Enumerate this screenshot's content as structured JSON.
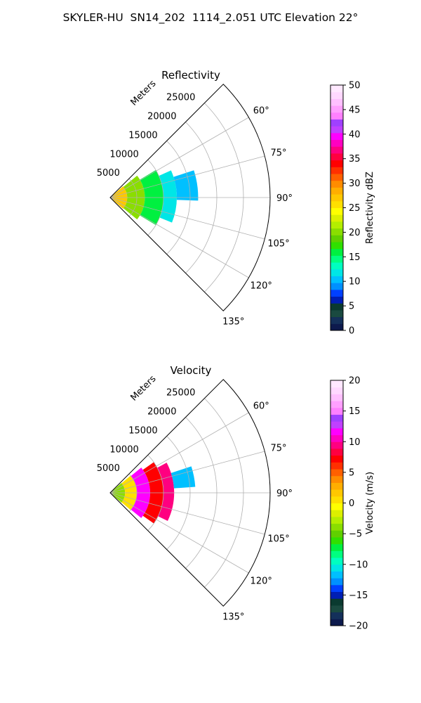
{
  "suptitle": "SKYLER-HU  SN14_202  1114_2.051 UTC Elevation 22°",
  "chart_data": [
    {
      "type": "heatmap",
      "projection": "polar-sector",
      "title": "Reflectivity",
      "range_label": "Meters",
      "azimuth_range_deg": [
        45,
        135
      ],
      "range_lim": [
        0,
        30000
      ],
      "range_ticks": [
        5000,
        10000,
        15000,
        20000,
        25000
      ],
      "azimuth_ticks": [
        60,
        75,
        90,
        105,
        120,
        135
      ],
      "azimuth_tick_labels": [
        "60°",
        "75°",
        "90°",
        "105°",
        "120°",
        "135°"
      ],
      "grid": true,
      "colorbar": {
        "label": "Reflectivity dBZ",
        "range": [
          0,
          50
        ],
        "ticks": [
          0,
          5,
          10,
          15,
          20,
          25,
          30,
          35,
          40,
          45,
          50
        ],
        "tick_labels": [
          "0",
          "5",
          "10",
          "15",
          "20",
          "25",
          "30",
          "35",
          "40",
          "45",
          "50"
        ],
        "colors": [
          "#0d1a4d",
          "#14305a",
          "#1a4a40",
          "#0a3a30",
          "#001eb4",
          "#0040ff",
          "#0090ff",
          "#00c0ff",
          "#00e6e6",
          "#00ffc0",
          "#00ff80",
          "#00f040",
          "#30e000",
          "#60d000",
          "#8ade00",
          "#b4ee00",
          "#dcf000",
          "#ffff00",
          "#ffe000",
          "#ffc800",
          "#ffae00",
          "#ff8c00",
          "#ff6000",
          "#ff3000",
          "#ff0000",
          "#ff0040",
          "#ff0080",
          "#ff00c0",
          "#ff00ff",
          "#c040ff",
          "#a040ff",
          "#ff80ff",
          "#ffa0ff",
          "#ffc0ff",
          "#ffd8ff",
          "#ffe8ff"
        ]
      },
      "echo_bands": [
        {
          "az": [
            49,
            131
          ],
          "r": [
            0,
            3200
          ],
          "value": 27
        },
        {
          "az": [
            51,
            129
          ],
          "r": [
            3200,
            6500
          ],
          "value": 20
        },
        {
          "az": [
            59,
            121
          ],
          "r": [
            6500,
            10000
          ],
          "value": 16
        },
        {
          "az": [
            66,
            112
          ],
          "r": [
            10000,
            12500
          ],
          "value": 12
        },
        {
          "az": [
            72,
            92
          ],
          "r": [
            12500,
            16500
          ],
          "value": 11
        }
      ]
    },
    {
      "type": "heatmap",
      "projection": "polar-sector",
      "title": "Velocity",
      "range_label": "Meters",
      "azimuth_range_deg": [
        45,
        135
      ],
      "range_lim": [
        0,
        30000
      ],
      "range_ticks": [
        5000,
        10000,
        15000,
        20000,
        25000
      ],
      "azimuth_ticks": [
        60,
        75,
        90,
        105,
        120,
        135
      ],
      "azimuth_tick_labels": [
        "60°",
        "75°",
        "90°",
        "105°",
        "120°",
        "135°"
      ],
      "grid": true,
      "colorbar": {
        "label": "Velocity (m/s)",
        "range": [
          -20,
          20
        ],
        "ticks": [
          -20,
          -15,
          -10,
          -5,
          0,
          5,
          10,
          15,
          20
        ],
        "tick_labels": [
          "−20",
          "−15",
          "−10",
          "−5",
          "0",
          "5",
          "10",
          "15",
          "20"
        ],
        "colors": [
          "#0d1a4d",
          "#14305a",
          "#1a4a40",
          "#0a3a30",
          "#001eb4",
          "#0040ff",
          "#0090ff",
          "#00c0ff",
          "#00e6e6",
          "#00ffc0",
          "#00ff80",
          "#00f040",
          "#30e000",
          "#60d000",
          "#8ade00",
          "#b4ee00",
          "#dcf000",
          "#ffff00",
          "#ffe000",
          "#ffc800",
          "#ffae00",
          "#ff8c00",
          "#ff6000",
          "#ff3000",
          "#ff0000",
          "#ff0040",
          "#ff0080",
          "#ff00c0",
          "#ff00ff",
          "#c040ff",
          "#a040ff",
          "#ff80ff",
          "#ffa0ff",
          "#ffc0ff",
          "#ffd8ff",
          "#ffe8ff"
        ]
      },
      "echo_bands": [
        {
          "az": [
            49,
            131
          ],
          "r": [
            0,
            2800
          ],
          "value": -4
        },
        {
          "az": [
            50,
            130
          ],
          "r": [
            2800,
            5000
          ],
          "value": 1
        },
        {
          "az": [
            51,
            129
          ],
          "r": [
            5000,
            7500
          ],
          "value": 12
        },
        {
          "az": [
            55,
            125
          ],
          "r": [
            7500,
            10000
          ],
          "value": 7
        },
        {
          "az": [
            62,
            116
          ],
          "r": [
            10000,
            12000
          ],
          "value": 9
        },
        {
          "az": [
            72,
            86
          ],
          "r": [
            12000,
            16000
          ],
          "value": -12
        }
      ]
    }
  ]
}
